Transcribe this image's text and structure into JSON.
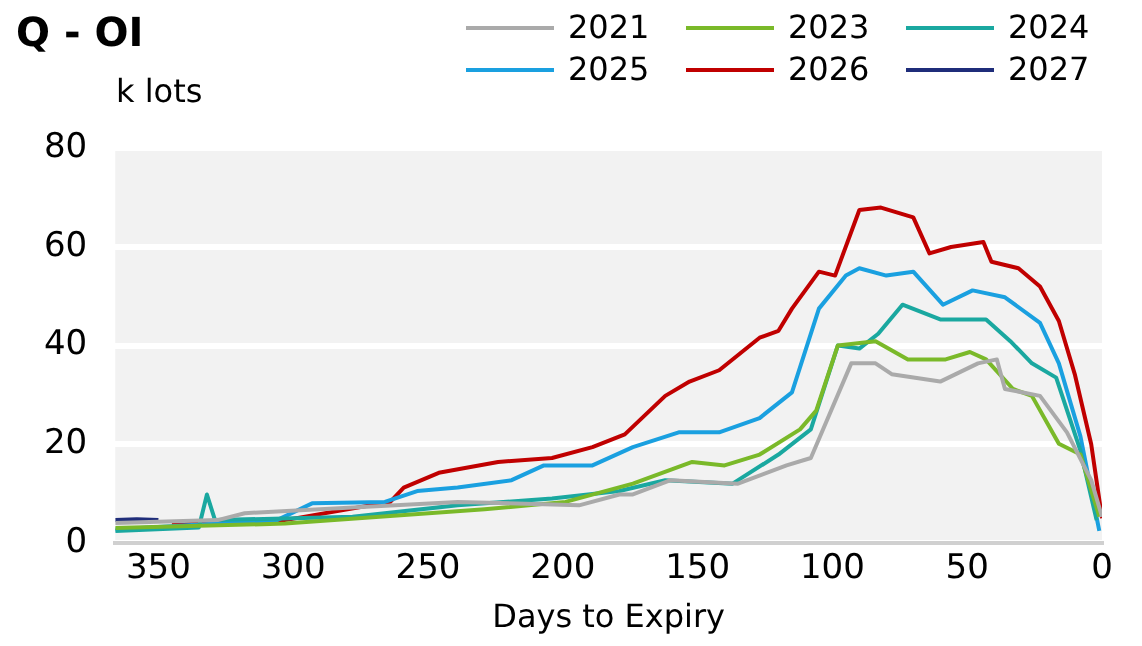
{
  "chart_data": {
    "type": "line",
    "title": "Q - OI",
    "ylabel": "k lots",
    "xlabel": "Days to Expiry",
    "xlim": [
      366,
      0
    ],
    "xticks": [
      350,
      300,
      250,
      200,
      150,
      100,
      50,
      0
    ],
    "ylim": [
      0,
      80
    ],
    "yticks": [
      0,
      20,
      40,
      60,
      80
    ],
    "grid": "y",
    "legend": "top right",
    "marker": "none",
    "line_style": "solid",
    "series": [
      {
        "name": "2021",
        "color": "#aaaaaa",
        "x": [
          366,
          328,
          318,
          239,
          194,
          179,
          174,
          160,
          135,
          117,
          108,
          93,
          84,
          78,
          60,
          46,
          39,
          36,
          23,
          13,
          4,
          0
        ],
        "values": [
          4,
          4.6,
          6,
          8.3,
          7.6,
          9.8,
          9.8,
          12.7,
          12,
          15.7,
          17.2,
          36.4,
          36.4,
          34.2,
          32.7,
          36.4,
          37.2,
          31.2,
          29.8,
          22.4,
          12.7,
          5.3
        ]
      },
      {
        "name": "2023",
        "color": "#7ab929",
        "x": [
          366,
          303,
          229,
          199,
          174,
          152,
          140,
          127,
          112,
          106,
          98,
          84,
          72,
          58,
          49,
          43,
          33,
          26,
          16,
          8,
          1
        ],
        "values": [
          3,
          3.9,
          6.8,
          8.3,
          12,
          16.4,
          15.7,
          17.9,
          23,
          26.8,
          40,
          40.9,
          37.2,
          37.2,
          38.7,
          37.2,
          31.2,
          29.8,
          20.1,
          17.9,
          5.3
        ]
      },
      {
        "name": "2024",
        "color": "#1aa8a0",
        "x": [
          366,
          335,
          332,
          329,
          278,
          239,
          204,
          179,
          162,
          137,
          120,
          108,
          98,
          90,
          83,
          74,
          60,
          43,
          34,
          26,
          17,
          8,
          2
        ],
        "values": [
          2.4,
          3.1,
          9.8,
          4.6,
          5.3,
          7.6,
          9,
          10.5,
          12.7,
          12,
          17.9,
          23,
          40,
          39.4,
          42.4,
          48.3,
          45.3,
          45.3,
          40.9,
          36.4,
          33.5,
          18.7,
          4.6
        ]
      },
      {
        "name": "2025",
        "color": "#1aa0e0",
        "x": [
          366,
          306,
          293,
          266,
          254,
          239,
          219,
          207,
          189,
          174,
          157,
          142,
          127,
          115,
          105,
          95,
          90,
          80,
          70,
          59,
          48,
          36,
          23,
          16,
          8,
          1
        ],
        "values": [
          2.7,
          4.6,
          8,
          8.3,
          10.5,
          11.2,
          12.7,
          15.7,
          15.7,
          19.4,
          22.4,
          22.4,
          25.3,
          30.5,
          47.5,
          54.2,
          55.7,
          54.2,
          55,
          48.3,
          51.2,
          49.8,
          44.6,
          36.4,
          21.6,
          2.4
        ]
      },
      {
        "name": "2026",
        "color": "#c00000",
        "x": [
          345,
          303,
          264,
          259,
          246,
          224,
          204,
          189,
          177,
          162,
          153,
          142,
          127,
          120,
          115,
          105,
          99,
          90,
          82,
          70,
          64,
          56,
          44,
          41,
          31,
          23,
          16,
          10,
          4,
          0
        ],
        "values": [
          3.9,
          4.6,
          8.3,
          11.2,
          14.2,
          16.4,
          17.2,
          19.4,
          22,
          29.8,
          32.7,
          35,
          41.6,
          43,
          47.5,
          55,
          54.2,
          67.5,
          68,
          66,
          58.7,
          60,
          61,
          57,
          55.7,
          52,
          45,
          34,
          20,
          5
        ]
      },
      {
        "name": "2027",
        "color": "#1f2d7a",
        "x": [
          366,
          358,
          350
        ],
        "values": [
          4.6,
          4.8,
          4.6
        ]
      }
    ]
  }
}
